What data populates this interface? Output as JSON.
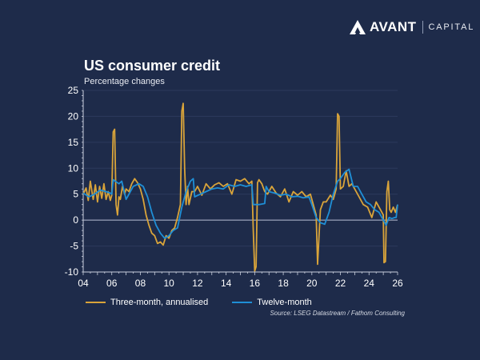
{
  "brand": {
    "name": "AVANT",
    "sub": "CAPITAL"
  },
  "colors": {
    "background": "#1e2b4a",
    "three_month": "#d9a43a",
    "twelve_month": "#1f8fd6",
    "grid": "#2c3a5c",
    "zero": "#b8c0d4"
  },
  "chart_data": {
    "type": "line",
    "title": "US consumer credit",
    "subtitle": "Percentage changes",
    "xlabel": "",
    "ylabel": "",
    "xlim": [
      2004,
      2026
    ],
    "ylim": [
      -10,
      25
    ],
    "yticks": [
      "25",
      "20",
      "15",
      "10",
      "5",
      "0",
      "-5",
      "-10"
    ],
    "ytick_values": [
      25,
      20,
      15,
      10,
      5,
      0,
      -5,
      -10
    ],
    "xticks": [
      "04",
      "06",
      "08",
      "10",
      "12",
      "14",
      "16",
      "18",
      "20",
      "22",
      "24",
      "26"
    ],
    "xtick_values": [
      2004,
      2006,
      2008,
      2010,
      2012,
      2014,
      2016,
      2018,
      2020,
      2022,
      2024,
      2026
    ],
    "grid": true,
    "legend": "bottom",
    "source": "Source: LSEG Datastream / Fathom Consulting",
    "series": [
      {
        "name": "Three-month, annualised",
        "x": [
          2004.0,
          2004.2,
          2004.35,
          2004.5,
          2004.7,
          2004.85,
          2005.0,
          2005.15,
          2005.3,
          2005.45,
          2005.6,
          2005.75,
          2005.9,
          2006.0,
          2006.1,
          2006.2,
          2006.3,
          2006.4,
          2006.5,
          2006.6,
          2006.75,
          2006.9,
          2007.0,
          2007.2,
          2007.4,
          2007.6,
          2007.8,
          2008.0,
          2008.2,
          2008.4,
          2008.6,
          2008.8,
          2009.0,
          2009.2,
          2009.4,
          2009.6,
          2009.8,
          2010.0,
          2010.2,
          2010.4,
          2010.6,
          2010.8,
          2010.9,
          2011.0,
          2011.1,
          2011.2,
          2011.3,
          2011.4,
          2011.6,
          2011.8,
          2012.0,
          2012.3,
          2012.6,
          2012.9,
          2013.2,
          2013.5,
          2013.8,
          2014.1,
          2014.4,
          2014.7,
          2015.0,
          2015.3,
          2015.6,
          2015.8,
          2015.9,
          2016.0,
          2016.1,
          2016.2,
          2016.3,
          2016.5,
          2016.7,
          2016.9,
          2017.2,
          2017.5,
          2017.8,
          2018.1,
          2018.4,
          2018.7,
          2019.0,
          2019.3,
          2019.6,
          2019.9,
          2020.1,
          2020.3,
          2020.4,
          2020.5,
          2020.6,
          2020.8,
          2021.0,
          2021.3,
          2021.5,
          2021.7,
          2021.8,
          2021.9,
          2022.0,
          2022.2,
          2022.4,
          2022.6,
          2022.8,
          2023.0,
          2023.3,
          2023.6,
          2023.9,
          2024.2,
          2024.5,
          2024.8,
          2025.0,
          2025.05,
          2025.15,
          2025.25,
          2025.35,
          2025.45,
          2025.55,
          2025.7,
          2025.85,
          2026.0
        ],
        "values": [
          5.0,
          6.2,
          3.8,
          7.5,
          4.0,
          6.8,
          3.5,
          6.5,
          4.2,
          7.0,
          4.0,
          5.5,
          3.8,
          4.8,
          17.0,
          17.5,
          3.0,
          1.0,
          4.5,
          4.0,
          6.5,
          5.0,
          6.0,
          5.5,
          7.0,
          8.0,
          7.2,
          6.0,
          4.0,
          1.0,
          -1.0,
          -2.5,
          -3.0,
          -4.5,
          -4.2,
          -4.8,
          -3.0,
          -3.5,
          -2.0,
          -1.5,
          0.5,
          3.0,
          21.0,
          22.5,
          10.0,
          3.0,
          6.5,
          3.0,
          5.5,
          5.5,
          6.5,
          4.8,
          7.0,
          6.0,
          6.8,
          7.2,
          6.5,
          7.0,
          5.0,
          7.8,
          7.5,
          8.0,
          7.0,
          7.5,
          -2.0,
          -9.8,
          -9.0,
          7.2,
          7.8,
          7.0,
          5.5,
          5.0,
          6.5,
          5.2,
          4.5,
          6.0,
          3.5,
          5.5,
          4.8,
          5.5,
          4.5,
          5.0,
          3.0,
          1.0,
          -8.5,
          -3.0,
          2.0,
          3.5,
          3.5,
          4.8,
          4.0,
          6.0,
          20.5,
          20.0,
          6.0,
          6.5,
          9.5,
          6.5,
          7.0,
          6.0,
          4.5,
          3.0,
          2.5,
          0.5,
          3.5,
          2.0,
          1.0,
          -8.2,
          -8.0,
          5.5,
          7.5,
          2.0,
          1.5,
          2.5,
          1.5,
          3.0
        ],
        "color": "#d9a43a"
      },
      {
        "name": "Twelve-month",
        "x": [
          2004.0,
          2004.4,
          2004.8,
          2005.2,
          2005.6,
          2005.9,
          2006.0,
          2006.1,
          2006.5,
          2006.7,
          2007.0,
          2007.1,
          2007.5,
          2007.9,
          2008.2,
          2008.5,
          2008.8,
          2009.1,
          2009.4,
          2009.7,
          2010.0,
          2010.3,
          2010.6,
          2010.9,
          2011.2,
          2011.5,
          2011.7,
          2011.8,
          2012.2,
          2012.6,
          2013.0,
          2013.4,
          2013.8,
          2014.2,
          2014.6,
          2015.0,
          2015.4,
          2015.8,
          2015.9,
          2016.3,
          2016.7,
          2016.8,
          2017.0,
          2017.4,
          2017.8,
          2018.2,
          2018.6,
          2019.0,
          2019.4,
          2019.8,
          2020.0,
          2020.3,
          2020.6,
          2020.9,
          2021.2,
          2021.5,
          2021.8,
          2022.0,
          2022.3,
          2022.6,
          2022.9,
          2023.2,
          2023.5,
          2023.8,
          2024.1,
          2024.4,
          2024.7,
          2025.0,
          2025.2,
          2025.4,
          2025.6,
          2025.8,
          2025.9,
          2026.0
        ],
        "values": [
          5.2,
          4.5,
          5.0,
          5.8,
          5.5,
          5.2,
          5.0,
          7.8,
          7.0,
          7.5,
          4.0,
          4.5,
          6.5,
          7.0,
          6.5,
          4.5,
          1.5,
          -1.0,
          -2.5,
          -3.5,
          -3.0,
          -2.0,
          -1.5,
          2.5,
          5.5,
          7.5,
          8.0,
          4.5,
          5.0,
          5.5,
          6.0,
          6.2,
          6.0,
          6.8,
          6.5,
          6.8,
          6.5,
          6.8,
          3.0,
          3.0,
          3.2,
          6.5,
          5.5,
          5.2,
          4.8,
          5.0,
          4.5,
          4.6,
          4.3,
          4.5,
          3.0,
          0.5,
          -0.5,
          -0.8,
          1.5,
          5.0,
          7.5,
          8.0,
          9.2,
          9.8,
          6.5,
          6.5,
          5.0,
          3.5,
          3.0,
          2.0,
          1.5,
          0.0,
          -1.0,
          0.5,
          0.3,
          0.5,
          0.5,
          3.0
        ],
        "color": "#1f8fd6"
      }
    ]
  }
}
